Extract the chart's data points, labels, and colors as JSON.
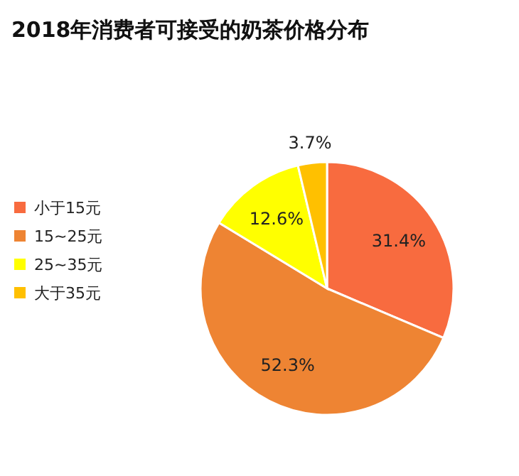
{
  "chart_data": {
    "type": "pie",
    "title": "2018年消费者可接受的奶茶价格分布",
    "categories": [
      "小于15元",
      "15~25元",
      "25~35元",
      "大于35元"
    ],
    "values": [
      31.4,
      52.3,
      12.6,
      3.7
    ],
    "colors": [
      "#f86b3f",
      "#ee8433",
      "#ffff00",
      "#ffc000"
    ],
    "value_labels": [
      "31.4%",
      "52.3%",
      "12.6%",
      "3.7%"
    ],
    "legend": "left"
  }
}
